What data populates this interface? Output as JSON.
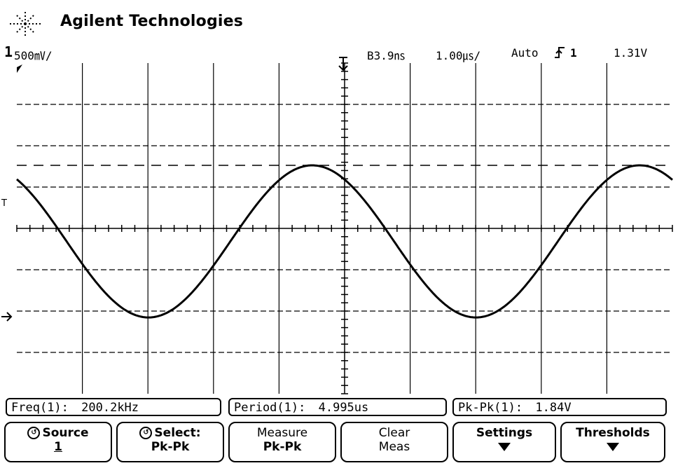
{
  "brand": {
    "name": "Agilent Technologies"
  },
  "status_bar": {
    "channel": "1",
    "volts_per_div": "500㎷/",
    "time_offset": "B3.9㎱",
    "time_per_div": "1.00㎲/",
    "trigger_mode": "Auto",
    "trigger_slope_icon": "rising-edge-icon",
    "trigger_source": "1",
    "trigger_level": "1.31V"
  },
  "graticule": {
    "divisions_x": 10,
    "divisions_y": 8
  },
  "markers": {
    "trigger_marker": "T",
    "ground_marker": "1"
  },
  "waveform": {
    "shape": "sine",
    "frequency": "200.2kHz",
    "period": "4.995us",
    "peak_to_peak": "1.84V"
  },
  "measurements": [
    {
      "label": "Freq(1):",
      "value": "200.2kHz"
    },
    {
      "label": "Period(1):",
      "value": "4.995us"
    },
    {
      "label": "Pk-Pk(1):",
      "value": "1.84V"
    }
  ],
  "softkeys": [
    {
      "line1": "Source",
      "line2": "1",
      "icon": "knob-icon"
    },
    {
      "line1": "Select:",
      "line2": "Pk-Pk",
      "icon": "knob-icon"
    },
    {
      "line1": "Measure",
      "line2": "Pk-Pk"
    },
    {
      "line1": "Clear",
      "line2": "Meas"
    },
    {
      "line1": "Settings",
      "line2": "",
      "icon": "submenu-arrow-icon"
    },
    {
      "line1": "Thresholds",
      "line2": "",
      "icon": "submenu-arrow-icon"
    }
  ]
}
